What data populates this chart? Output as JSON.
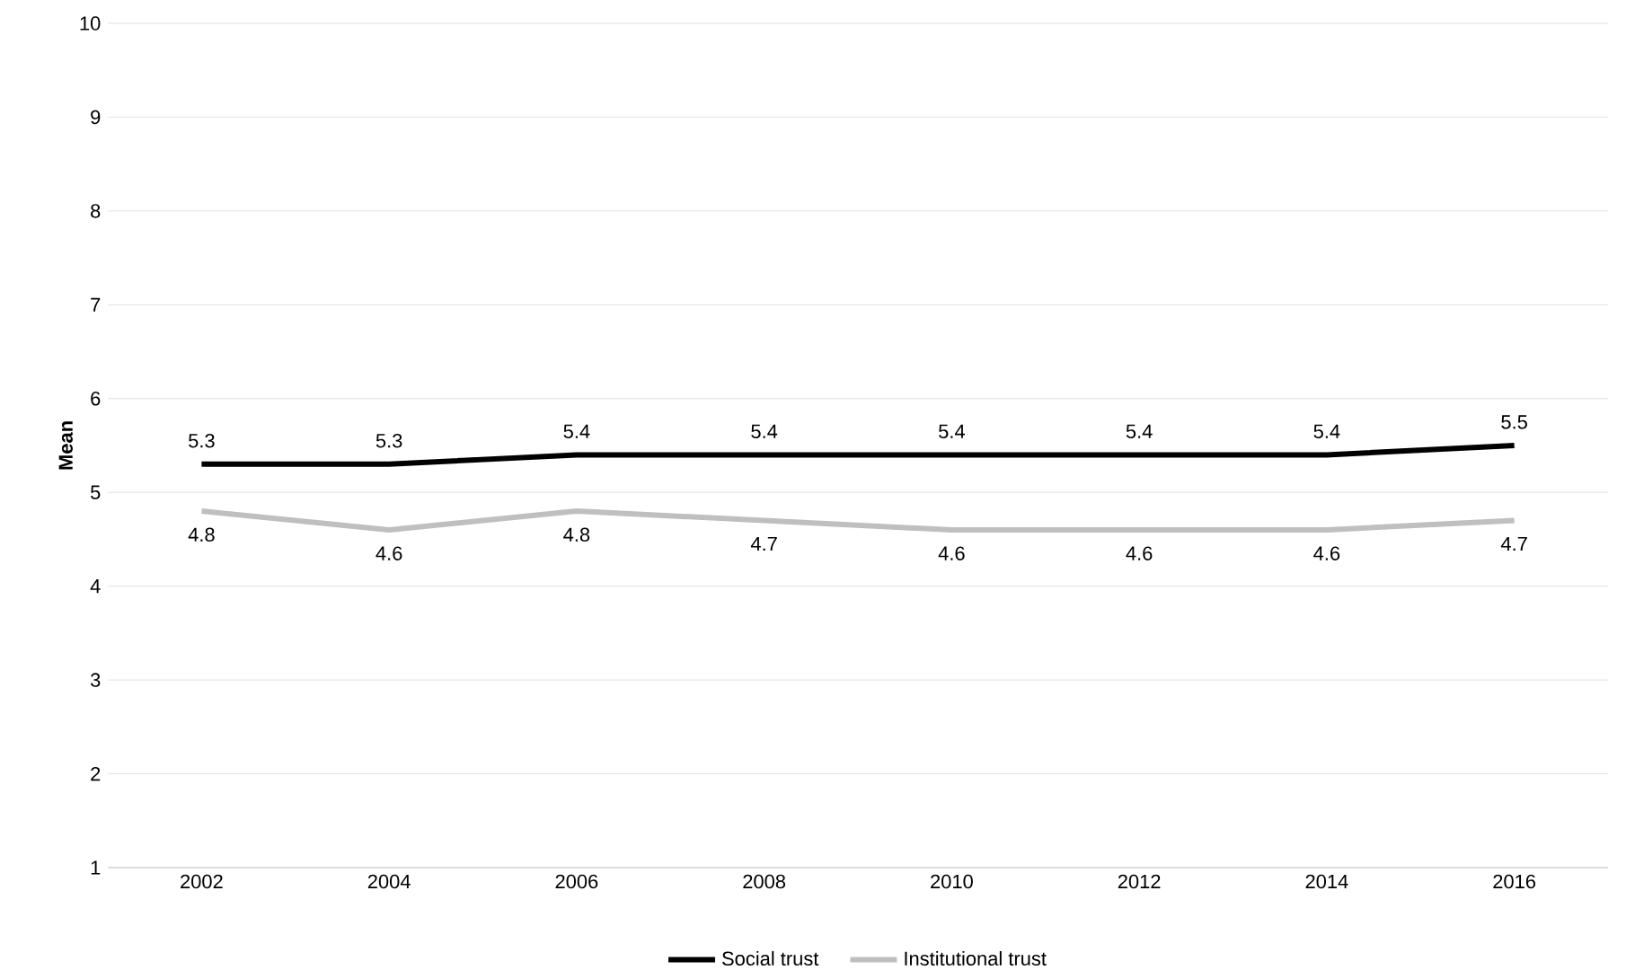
{
  "chart_data": {
    "type": "line",
    "ylabel": "Mean",
    "categories": [
      "2002",
      "2004",
      "2006",
      "2008",
      "2010",
      "2012",
      "2014",
      "2016"
    ],
    "series": [
      {
        "name": "Social trust",
        "color": "#000000",
        "values": [
          5.3,
          5.3,
          5.4,
          5.4,
          5.4,
          5.4,
          5.4,
          5.5
        ]
      },
      {
        "name": "Institutional trust",
        "color": "#bfbfbf",
        "values": [
          4.8,
          4.6,
          4.8,
          4.7,
          4.6,
          4.6,
          4.6,
          4.7
        ]
      }
    ],
    "ylim": [
      1,
      10
    ],
    "yticks": [
      1,
      2,
      3,
      4,
      5,
      6,
      7,
      8,
      9,
      10
    ],
    "grid": "y",
    "legend": "bottom",
    "data_labels": true,
    "marker": "none",
    "line_style": "solid"
  }
}
